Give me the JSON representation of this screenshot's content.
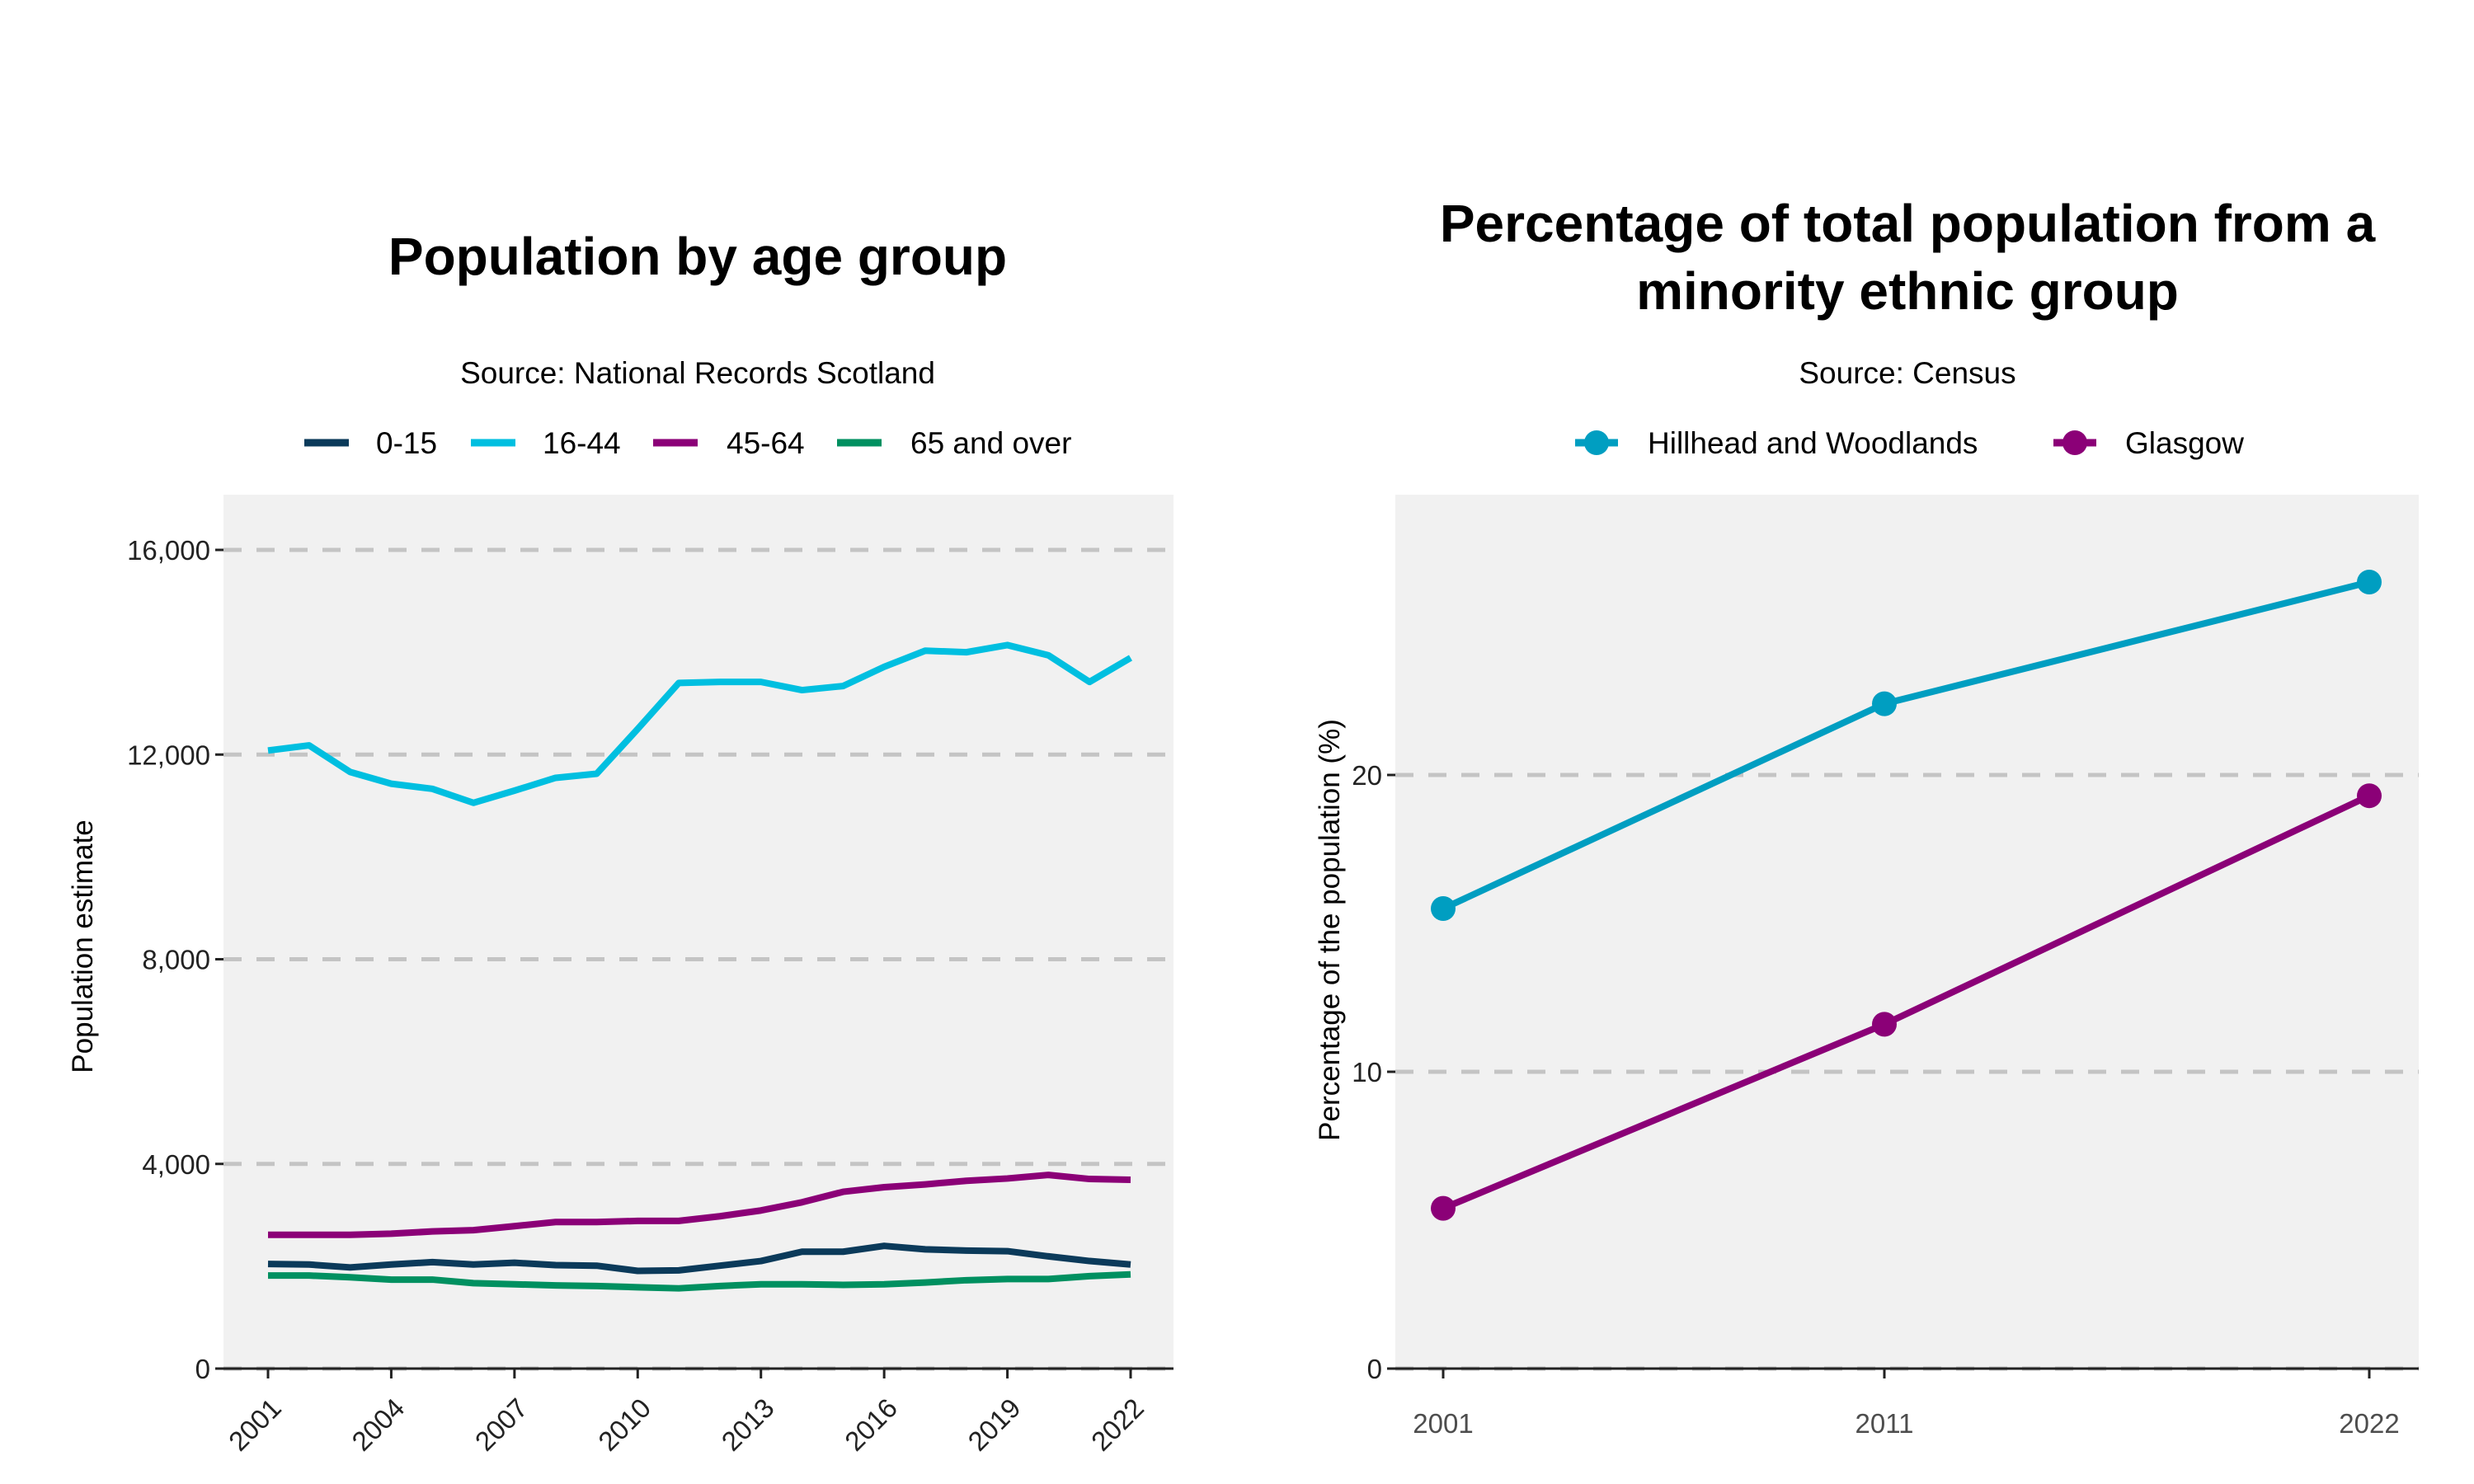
{
  "chart_data": [
    {
      "type": "line",
      "title": "Population by age group",
      "subtitle": "Source: National Records Scotland",
      "xlabel": "",
      "ylabel": "Population estimate",
      "legend_position": "top",
      "grid": "horizontal dashed",
      "ylim": [
        0,
        16500
      ],
      "yticks": [
        0,
        4000,
        8000,
        12000,
        16000
      ],
      "ytick_labels": [
        "0",
        "4,000",
        "8,000",
        "12,000",
        "16,000"
      ],
      "xticks": [
        2001,
        2004,
        2007,
        2010,
        2013,
        2016,
        2019,
        2022
      ],
      "x": [
        2001,
        2002,
        2003,
        2004,
        2005,
        2006,
        2007,
        2008,
        2009,
        2010,
        2011,
        2012,
        2013,
        2014,
        2015,
        2016,
        2017,
        2018,
        2019,
        2020,
        2021,
        2022
      ],
      "series": [
        {
          "name": "0-15",
          "color": "#0b3a5a",
          "values": [
            2045,
            2034,
            1977,
            2034,
            2080,
            2034,
            2068,
            2023,
            2011,
            1909,
            1920,
            2011,
            2102,
            2284,
            2284,
            2398,
            2330,
            2307,
            2295,
            2193,
            2102,
            2034
          ]
        },
        {
          "name": "16-44",
          "color": "#00bfe0",
          "values": [
            12080,
            12180,
            11660,
            11430,
            11330,
            11057,
            11295,
            11545,
            11625,
            12500,
            13400,
            13420,
            13420,
            13260,
            13340,
            13715,
            14030,
            14000,
            14140,
            13940,
            13420,
            13890
          ]
        },
        {
          "name": "45-64",
          "color": "#8b0077",
          "values": [
            2614,
            2614,
            2614,
            2636,
            2680,
            2705,
            2784,
            2864,
            2864,
            2886,
            2886,
            2977,
            3090,
            3250,
            3455,
            3545,
            3600,
            3670,
            3715,
            3785,
            3705,
            3690
          ]
        },
        {
          "name": "65 and over",
          "color": "#009060",
          "values": [
            1818,
            1818,
            1784,
            1739,
            1739,
            1670,
            1648,
            1625,
            1614,
            1590,
            1568,
            1614,
            1648,
            1648,
            1636,
            1648,
            1682,
            1727,
            1750,
            1750,
            1807,
            1840
          ]
        }
      ]
    },
    {
      "type": "line",
      "title": [
        "Percentage of total population from a",
        "minority ethnic group"
      ],
      "subtitle": "Source: Census",
      "xlabel": "",
      "ylabel": "Percentage of the population (%)",
      "legend_position": "top",
      "grid": "horizontal dashed",
      "markers": true,
      "ylim": [
        0,
        29.5
      ],
      "yticks": [
        0,
        10,
        20
      ],
      "ytick_labels": [
        "0",
        "10",
        "20"
      ],
      "x": [
        "2001",
        "2011",
        "2022"
      ],
      "series": [
        {
          "name": "Hillhead and Woodlands",
          "color": "#009ec1",
          "values": [
            15.5,
            22.4,
            26.5
          ]
        },
        {
          "name": "Glasgow",
          "color": "#8b0077",
          "values": [
            5.4,
            11.6,
            19.3
          ]
        }
      ]
    }
  ]
}
